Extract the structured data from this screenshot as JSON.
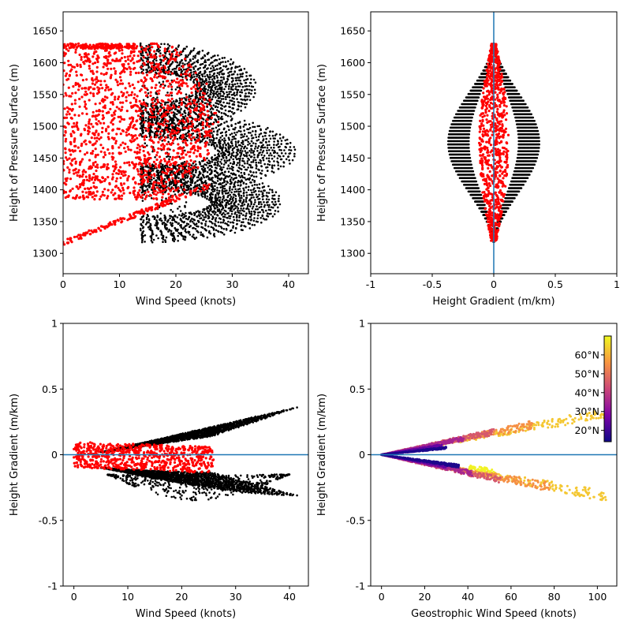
{
  "colors": {
    "black": "#000000",
    "red": "#ff0000",
    "refline": "#1f77b4"
  },
  "chart_data": [
    {
      "type": "scatter",
      "xlabel": "Wind Speed (knots)",
      "ylabel": "Height of Pressure Surface (m)",
      "xlim": [
        0,
        43.5
      ],
      "ylim": [
        1268,
        1680
      ],
      "xticks": [
        0,
        10,
        20,
        30,
        40
      ],
      "xtick_labels": [
        "0",
        "10",
        "20",
        "30",
        "40"
      ],
      "yticks": [
        1300,
        1350,
        1400,
        1450,
        1500,
        1550,
        1600,
        1650
      ],
      "ytick_labels": [
        "1300",
        "1350",
        "1400",
        "1450",
        "1500",
        "1550",
        "1600",
        "1650"
      ],
      "series": [
        {
          "color": "#000000",
          "lobes": [
            {
              "h_base": 1318,
              "h_top": 1440,
              "x_max": 38.5
            },
            {
              "h_base": 1395,
              "h_top": 1525,
              "x_max": 41
            },
            {
              "h_base": 1490,
              "h_top": 1630,
              "x_max": 34
            }
          ]
        },
        {
          "color": "#ff0000",
          "x_range": [
            0,
            26
          ],
          "h_range": [
            1316,
            1630
          ]
        }
      ]
    },
    {
      "type": "scatter",
      "xlabel": "Height Gradient (m/km)",
      "ylabel": "Height of Pressure Surface (m)",
      "xlim": [
        -1,
        1
      ],
      "ylim": [
        1268,
        1680
      ],
      "xticks": [
        -1,
        -0.5,
        0,
        0.5,
        1
      ],
      "xtick_labels": [
        "-1",
        "-0.5",
        "0",
        "0.5",
        "1"
      ],
      "yticks": [
        1300,
        1350,
        1400,
        1450,
        1500,
        1550,
        1600,
        1650
      ],
      "ytick_labels": [
        "1300",
        "1350",
        "1400",
        "1450",
        "1500",
        "1550",
        "1600",
        "1650"
      ],
      "reference_line": {
        "orientation": "vertical",
        "x": 0
      },
      "series": [
        {
          "color": "#000000",
          "x_range": [
            -0.37,
            0.37
          ],
          "h_range": [
            1318,
            1630
          ]
        },
        {
          "color": "#ff0000",
          "x_range": [
            -0.1,
            0.1
          ],
          "h_range": [
            1318,
            1630
          ]
        }
      ]
    },
    {
      "type": "scatter",
      "xlabel": "Wind Speed (knots)",
      "ylabel": "Height Gradient (m/km)",
      "xlim": [
        -2,
        43.5
      ],
      "ylim": [
        -1,
        1
      ],
      "xticks": [
        0,
        10,
        20,
        30,
        40
      ],
      "xtick_labels": [
        "0",
        "10",
        "20",
        "30",
        "40"
      ],
      "yticks": [
        -1,
        -0.5,
        0,
        0.5,
        1
      ],
      "ytick_labels": [
        "-1",
        "-0.5",
        "0",
        "0.5",
        "1"
      ],
      "reference_line": {
        "orientation": "horizontal",
        "y": 0
      },
      "series": [
        {
          "color": "#000000",
          "upper_branch": {
            "x_max": 41,
            "y_max": 0.36
          },
          "lower_branch": {
            "x_max": 41,
            "y_min": -0.36
          }
        },
        {
          "color": "#ff0000",
          "x_range": [
            0,
            26
          ],
          "y_range": [
            -0.13,
            0.1
          ]
        }
      ]
    },
    {
      "type": "scatter",
      "xlabel": "Geostrophic Wind Speed (knots)",
      "ylabel": "Height Gradient (m/km)",
      "xlim": [
        -5,
        109
      ],
      "ylim": [
        -1,
        1
      ],
      "xticks": [
        0,
        20,
        40,
        60,
        80,
        100
      ],
      "xtick_labels": [
        "0",
        "20",
        "40",
        "60",
        "80",
        "100"
      ],
      "yticks": [
        -1,
        -0.5,
        0,
        0.5,
        1
      ],
      "ytick_labels": [
        "-1",
        "-0.5",
        "0",
        "0.5",
        "1"
      ],
      "reference_line": {
        "orientation": "horizontal",
        "y": 0
      },
      "colorbar": {
        "colormap": "plasma",
        "range": [
          14,
          70
        ],
        "ticks": [
          20,
          30,
          40,
          50,
          60
        ],
        "tick_labels": [
          "20°N",
          "30°N",
          "40°N",
          "50°N",
          "60°N"
        ]
      },
      "bands": [
        {
          "lat": 63,
          "upper_x_max": 104,
          "upper_y_max": 0.36,
          "lower_x_max": 104,
          "lower_y_min": -0.36
        },
        {
          "lat": 55,
          "upper_x_max": 70,
          "upper_y_max": 0.26,
          "lower_x_max": 78,
          "lower_y_min": -0.28
        },
        {
          "lat": 45,
          "upper_x_max": 52,
          "upper_y_max": 0.2,
          "lower_x_max": 55,
          "lower_y_min": -0.22
        },
        {
          "lat": 35,
          "upper_x_max": 38,
          "upper_y_max": 0.14,
          "lower_x_max": 42,
          "lower_y_min": -0.16
        },
        {
          "lat": 25,
          "upper_x_max": 28,
          "upper_y_max": 0.08,
          "lower_x_max": 30,
          "lower_y_min": -0.1
        },
        {
          "lat": 16,
          "upper_x_max": 30,
          "upper_y_max": 0.06,
          "lower_x_max": 36,
          "lower_y_min": -0.1
        },
        {
          "lat": 69,
          "upper_x_max": 0,
          "upper_y_max": 0,
          "lower_x_max": 52,
          "lower_y_min": -0.14
        }
      ]
    }
  ]
}
